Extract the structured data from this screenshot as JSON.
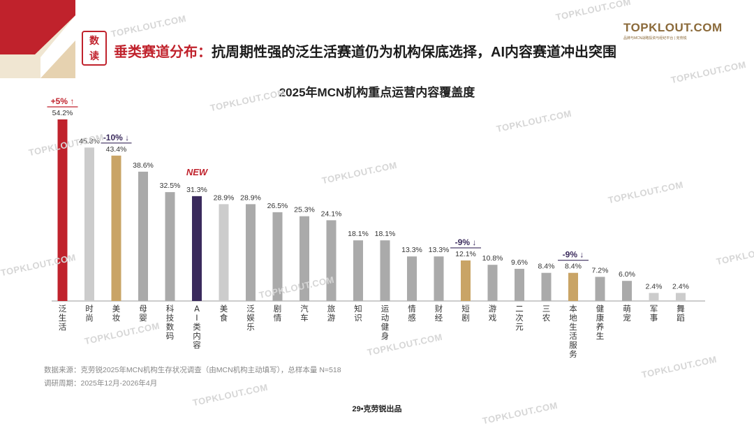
{
  "brand": {
    "name": "TOPKLOUT.COM",
    "sub": "品牌与MCN战略投资与经纪平台 | 克劳锐",
    "watermark": "TOPKLOUT.COM"
  },
  "badge": {
    "line1": "数",
    "line2": "读"
  },
  "headline": {
    "prefix": "垂类赛道分布：",
    "text": "抗周期性强的泛生活赛道仍为机构保底选择，AI内容赛道冲出突围"
  },
  "chart_data": {
    "type": "bar",
    "title": "2025年MCN机构重点运营内容覆盖度",
    "categories": [
      "泛生活",
      "时尚",
      "美妆",
      "母婴",
      "科技数码",
      "AI类内容",
      "美食",
      "泛娱乐",
      "剧情",
      "汽车",
      "旅游",
      "知识",
      "运动健身",
      "情感",
      "财经",
      "短剧",
      "游戏",
      "二次元",
      "三农",
      "本地生活服务",
      "健康养生",
      "萌宠",
      "军事",
      "舞蹈"
    ],
    "values": [
      54.2,
      45.8,
      43.4,
      38.6,
      32.5,
      31.3,
      28.9,
      28.9,
      26.5,
      25.3,
      24.1,
      18.1,
      18.1,
      13.3,
      13.3,
      12.1,
      10.8,
      9.6,
      8.4,
      8.4,
      7.2,
      6.0,
      2.4,
      2.4
    ],
    "value_labels": [
      "54.2%",
      "45.8%",
      "43.4%",
      "38.6%",
      "32.5%",
      "31.3%",
      "28.9%",
      "28.9%",
      "26.5%",
      "25.3%",
      "24.1%",
      "18.1%",
      "18.1%",
      "13.3%",
      "13.3%",
      "12.1%",
      "10.8%",
      "9.6%",
      "8.4%",
      "8.4%",
      "7.2%",
      "6.0%",
      "2.4%",
      "2.4%"
    ],
    "bar_colors": [
      "#c0222c",
      "#cccccc",
      "#c9a466",
      "#aaaaaa",
      "#aaaaaa",
      "#3a2a5c",
      "#cccccc",
      "#aaaaaa",
      "#aaaaaa",
      "#aaaaaa",
      "#aaaaaa",
      "#aaaaaa",
      "#aaaaaa",
      "#aaaaaa",
      "#aaaaaa",
      "#c9a466",
      "#aaaaaa",
      "#aaaaaa",
      "#aaaaaa",
      "#c9a466",
      "#aaaaaa",
      "#aaaaaa",
      "#cccccc",
      "#cccccc"
    ],
    "annotations": [
      {
        "index": 0,
        "text": "+5% ↑",
        "color": "#c0222c",
        "underline": true
      },
      {
        "index": 2,
        "text": "-10% ↓",
        "color": "#3a2a5c",
        "underline": true
      },
      {
        "index": 5,
        "text": "NEW",
        "color": "#c0222c",
        "underline": false
      },
      {
        "index": 15,
        "text": "-9% ↓",
        "color": "#3a2a5c",
        "underline": true
      },
      {
        "index": 19,
        "text": "-9% ↓",
        "color": "#3a2a5c",
        "underline": true
      }
    ],
    "ylim": [
      0,
      60
    ],
    "xlabel": "",
    "ylabel": ""
  },
  "notes": {
    "source": "数据来源：克劳锐2025年MCN机构生存状况调查（由MCN机构主动填写），总样本量 N=518",
    "period": "调研周期：2025年12月-2026年4月"
  },
  "footer": "29•克劳锐出品"
}
